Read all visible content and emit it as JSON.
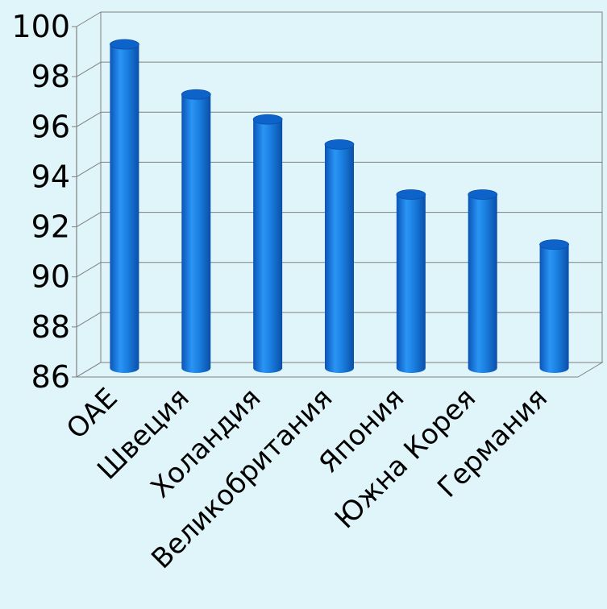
{
  "chart_data": {
    "type": "bar",
    "title": "",
    "xlabel": "",
    "ylabel": "",
    "categories": [
      "ОАЕ",
      "Швеция",
      "Холандия",
      "Великобритания",
      "Япония",
      "Южна Корея",
      "Германия"
    ],
    "values": [
      99,
      97,
      96,
      95,
      93,
      93,
      91
    ],
    "ylim": [
      86,
      100
    ],
    "yticks": [
      "86",
      "88",
      "90",
      "92",
      "94",
      "96",
      "98",
      "100"
    ],
    "grid": true,
    "legend": "none",
    "bar_color": "#1a7fe0",
    "style": "3d-cylinder"
  }
}
